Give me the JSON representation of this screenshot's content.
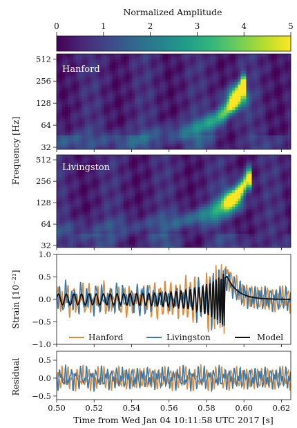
{
  "colorbar": {
    "label": "Normalized Amplitude",
    "ticks": [
      "0",
      "1",
      "2",
      "3",
      "4",
      "5"
    ],
    "range": [
      0,
      5
    ],
    "colormap": [
      "#440154",
      "#482878",
      "#3e4989",
      "#31688e",
      "#26828e",
      "#1f9e89",
      "#35b779",
      "#6ece58",
      "#b5de2b",
      "#fde725"
    ]
  },
  "chart_data": [
    {
      "type": "heatmap",
      "panel": "Hanford",
      "label": "Hanford",
      "ylabel": "Frequency [Hz]",
      "yscale": "log",
      "ylim": [
        30,
        600
      ],
      "yticks": [
        "512",
        "256",
        "128",
        "64",
        "32"
      ],
      "xlim": [
        0.5,
        0.625
      ],
      "chirp_track": [
        [
          0.535,
          40
        ],
        [
          0.56,
          48
        ],
        [
          0.575,
          58
        ],
        [
          0.584,
          72
        ],
        [
          0.59,
          95
        ],
        [
          0.594,
          130
        ],
        [
          0.597,
          170
        ],
        [
          0.599,
          220
        ]
      ],
      "peak": {
        "t": 0.596,
        "f": 150,
        "amplitude": 5
      }
    },
    {
      "type": "heatmap",
      "panel": "Livingston",
      "label": "Livingston",
      "yscale": "log",
      "ylim": [
        30,
        600
      ],
      "yticks": [
        "512",
        "256",
        "128",
        "64",
        "32"
      ],
      "xlim": [
        0.5,
        0.625
      ],
      "chirp_track": [
        [
          0.505,
          52
        ],
        [
          0.53,
          56
        ],
        [
          0.555,
          64
        ],
        [
          0.572,
          75
        ],
        [
          0.583,
          90
        ],
        [
          0.59,
          115
        ],
        [
          0.595,
          150
        ],
        [
          0.599,
          210
        ],
        [
          0.602,
          280
        ]
      ],
      "peak": {
        "t": 0.594,
        "f": 140,
        "amplitude": 4.6
      }
    },
    {
      "type": "line",
      "panel": "strain",
      "ylabel": "Strain [10⁻²¹]",
      "ylim": [
        -1.0,
        1.0
      ],
      "yticks": [
        "1.0",
        "0.5",
        "0.0",
        "−0.5",
        "−1.0"
      ],
      "xlim": [
        0.5,
        0.625
      ],
      "legend_position": "bottom",
      "series": [
        {
          "name": "Hanford",
          "color": "#dd8a3a",
          "role": "H"
        },
        {
          "name": "Livingston",
          "color": "#3a78a8",
          "role": "L"
        },
        {
          "name": "Model",
          "color": "#111111",
          "role": "M"
        }
      ]
    },
    {
      "type": "line",
      "panel": "residual",
      "ylabel": "Residual",
      "ylim": [
        -0.6,
        0.75
      ],
      "yticks": [
        "0.5",
        "0.0",
        "−0.5"
      ],
      "xlim": [
        0.5,
        0.625
      ],
      "xlabel": "Time from Wed Jan 04 10:11:58 UTC 2017 [s]",
      "xticks": [
        "0.50",
        "0.52",
        "0.54",
        "0.56",
        "0.58",
        "0.60",
        "0.62"
      ]
    }
  ]
}
